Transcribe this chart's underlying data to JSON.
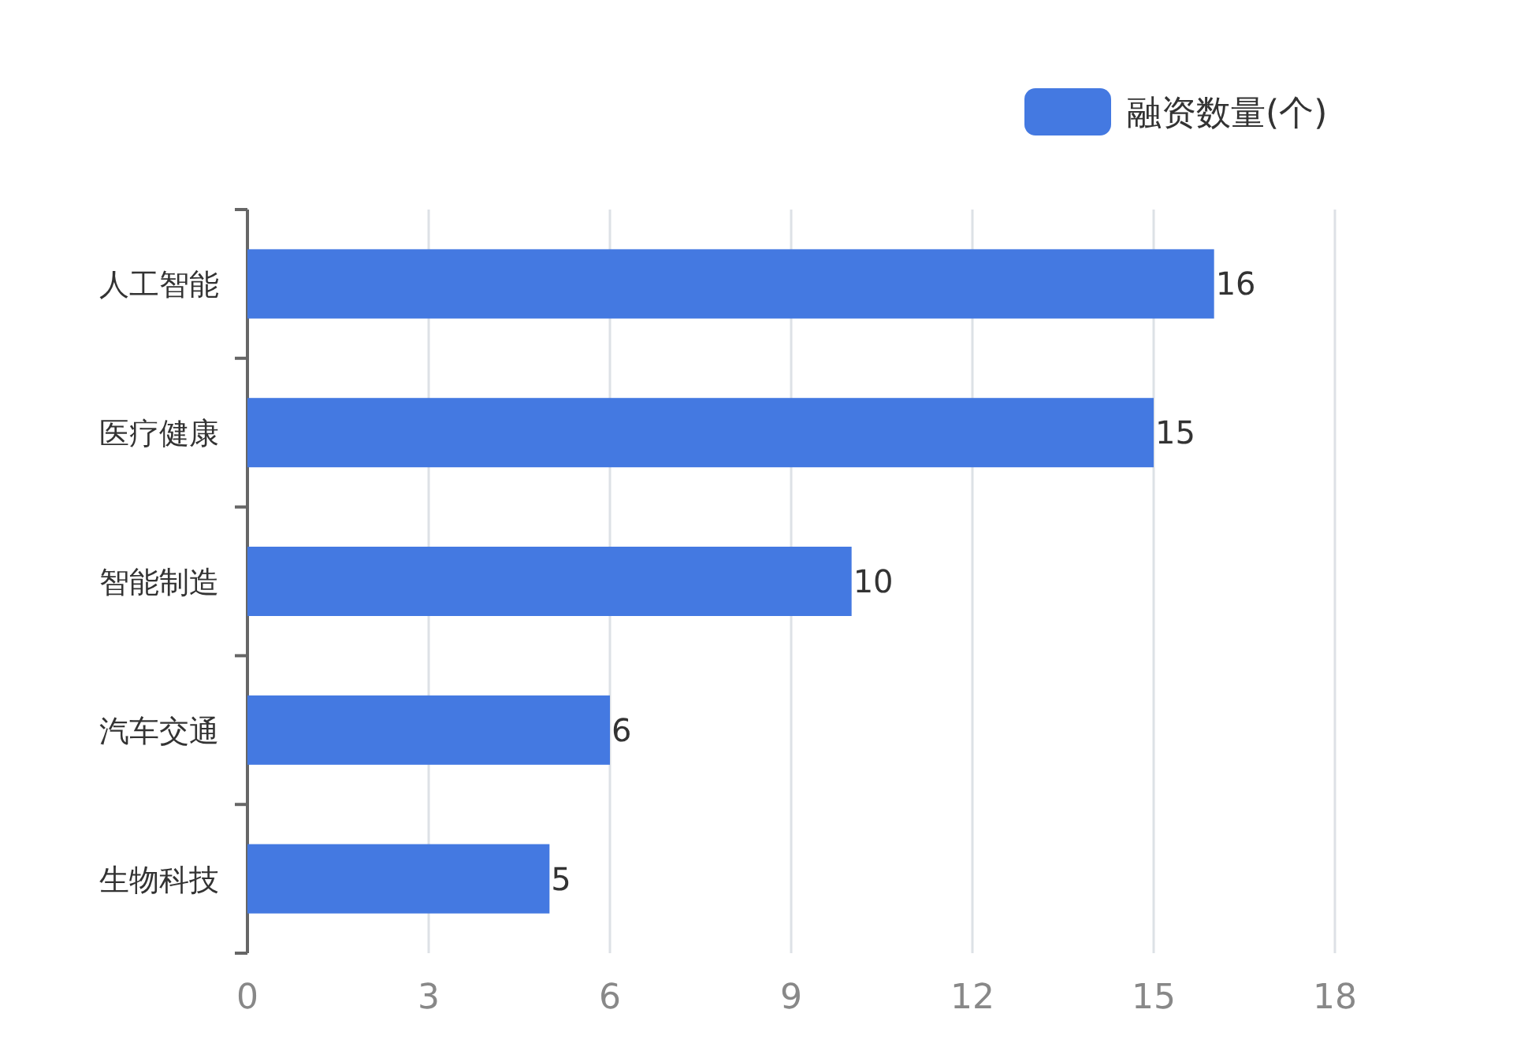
{
  "chart_data": {
    "type": "bar",
    "orientation": "horizontal",
    "categories": [
      "人工智能",
      "医疗健康",
      "智能制造",
      "汽车交通",
      "生物科技"
    ],
    "series": [
      {
        "name": "融资数量(个)",
        "color": "#4479e1",
        "values": [
          16,
          15,
          10,
          6,
          5
        ]
      }
    ],
    "xlim": [
      0,
      18
    ],
    "xticks": [
      0,
      3,
      6,
      9,
      12,
      15,
      18
    ],
    "grid": "x",
    "legend": "top right",
    "data_labels": true
  }
}
